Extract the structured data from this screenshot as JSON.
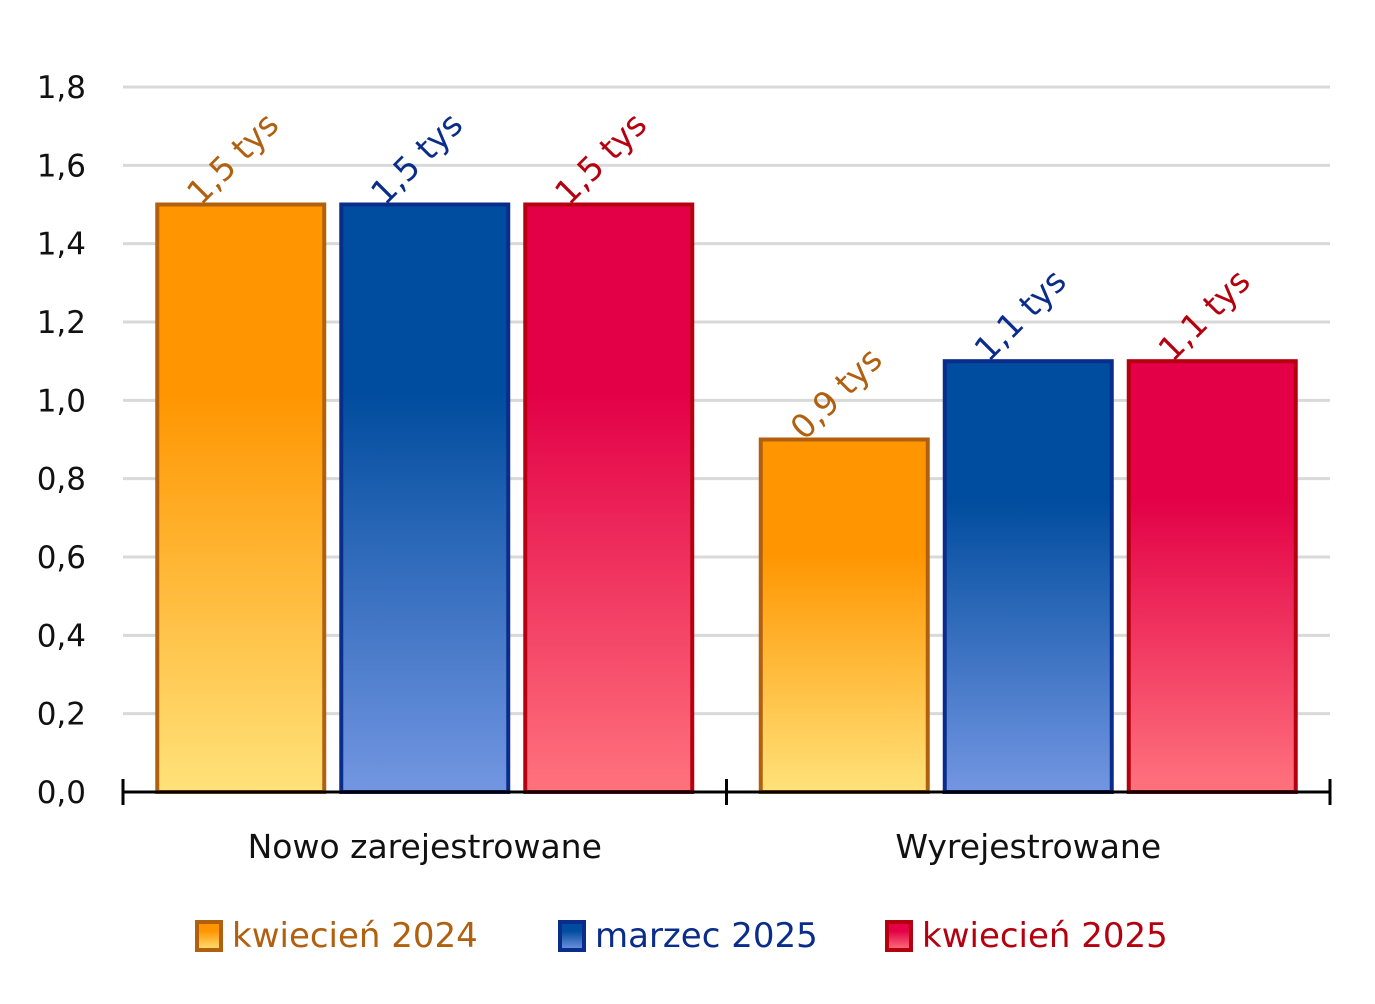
{
  "chart_data": {
    "type": "bar",
    "categories": [
      "Nowo zarejestrowane",
      "Wyrejestrowane"
    ],
    "series": [
      {
        "name": "kwiecień 2024",
        "values": [
          1.5,
          0.9
        ],
        "labels": [
          "1,5 tys",
          "0,9 tys"
        ],
        "color_top": "#FF9500",
        "color_bottom": "#FFE27A",
        "stroke": "#B0600F",
        "text_color": "#B0600F"
      },
      {
        "name": "marzec 2025",
        "values": [
          1.5,
          1.1
        ],
        "labels": [
          "1,5 tys",
          "1,1 tys"
        ],
        "color_top": "#004C9E",
        "color_bottom": "#7396E2",
        "stroke": "#0A2D8C",
        "text_color": "#0A2D8C"
      },
      {
        "name": "kwiecień 2025",
        "values": [
          1.5,
          1.1
        ],
        "labels": [
          "1,5 tys",
          "1,1 tys"
        ],
        "color_top": "#E30047",
        "color_bottom": "#FF737D",
        "stroke": "#B5000F",
        "text_color": "#B5000F"
      }
    ],
    "ylim": [
      0,
      1.8
    ],
    "yticks": [
      "0,0",
      "0,2",
      "0,4",
      "0,6",
      "0,8",
      "1,0",
      "1,2",
      "1,4",
      "1,6",
      "1,8"
    ],
    "grid": true,
    "legend_position": "bottom"
  }
}
